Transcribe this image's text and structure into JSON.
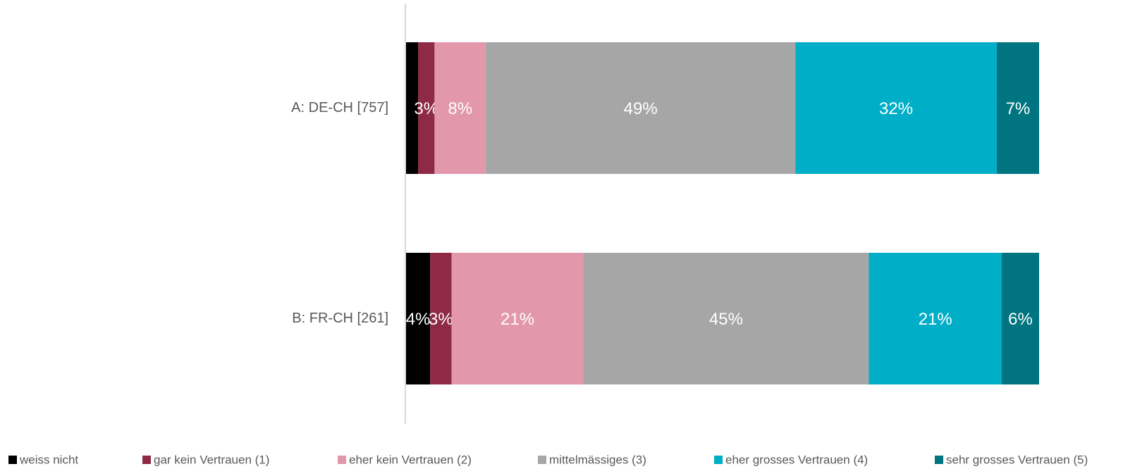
{
  "chart_data": {
    "type": "stacked-bar-horizontal",
    "categories": [
      "A: DE-CH [757]",
      "B: FR-CH [261]"
    ],
    "xlim": [
      0,
      100
    ],
    "legend": "bottom",
    "series": [
      {
        "name": "weiss nicht",
        "color": "#000000",
        "values": [
          1.9,
          3.8
        ],
        "value_labels": [
          null,
          "4%"
        ]
      },
      {
        "name": "gar kein Vertrauen (1)",
        "color": "#8f2a46",
        "values": [
          2.6,
          3.4
        ],
        "value_labels": [
          "3%",
          "3%"
        ]
      },
      {
        "name": "eher kein Vertrauen (2)",
        "color": "#e297aa",
        "values": [
          8.1,
          20.8
        ],
        "value_labels": [
          "8%",
          "21%"
        ]
      },
      {
        "name": "mittelmässiges (3)",
        "color": "#a6a6a6",
        "values": [
          48.9,
          45.1
        ],
        "value_labels": [
          "49%",
          "45%"
        ]
      },
      {
        "name": "eher grosses Vertrauen (4)",
        "color": "#00aec7",
        "values": [
          31.8,
          21.0
        ],
        "value_labels": [
          "32%",
          "21%"
        ]
      },
      {
        "name": "sehr grosses Vertrauen (5)",
        "color": "#007480",
        "values": [
          6.7,
          5.9
        ],
        "value_labels": [
          "7%",
          "6%"
        ]
      }
    ]
  }
}
